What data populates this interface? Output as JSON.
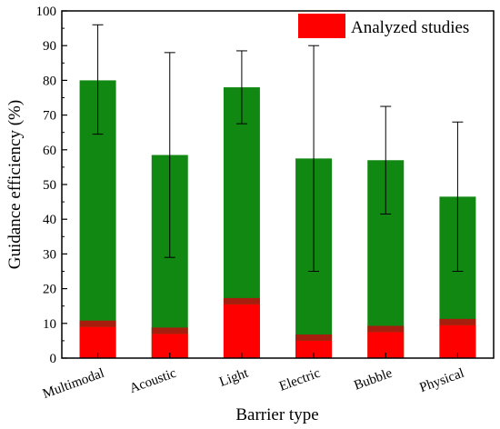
{
  "chart_data": {
    "type": "bar",
    "stacked": true,
    "categories": [
      "Multimodal",
      "Acoustic",
      "Light",
      "Electric",
      "Bubble",
      "Physical"
    ],
    "series": [
      {
        "name": "Analyzed studies",
        "values": [
          9,
          7,
          15.5,
          5,
          7.5,
          9.5
        ],
        "color": "#ff0000"
      },
      {
        "values": [
          80,
          58.5,
          78,
          57.5,
          57,
          46.5
        ],
        "error_low": [
          64.5,
          29,
          67.5,
          25,
          41.5,
          25
        ],
        "error_high": [
          96,
          88,
          88.5,
          90,
          72.5,
          68
        ],
        "color": "#118811"
      }
    ],
    "xlabel": "Barrier type",
    "ylabel": "Guidance efficiency (%)",
    "ylim": [
      0,
      100
    ],
    "yticks": [
      0,
      10,
      20,
      30,
      40,
      50,
      60,
      70,
      80,
      90,
      100
    ],
    "legend_position": "top-right",
    "grid": false
  }
}
